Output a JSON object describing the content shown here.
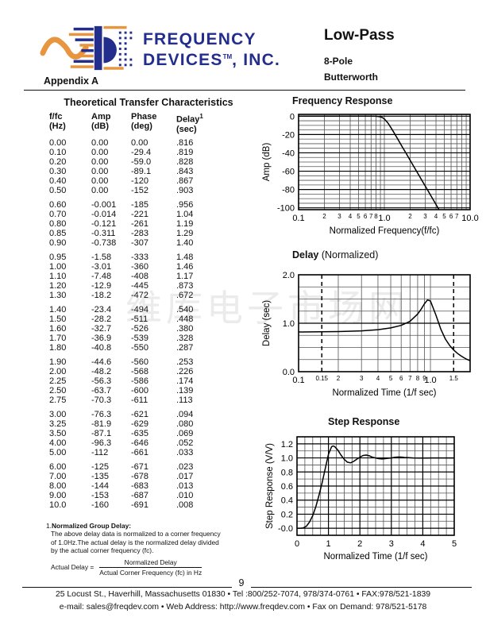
{
  "watermark": {
    "text": "维库电子市场网"
  },
  "header": {
    "brand_line1": "FREQUENCY",
    "brand_line2a": "DEVICES",
    "brand_tm": "TM",
    "brand_line2b": ", INC.",
    "brand_color": "#232e8c",
    "logo_orange": "#e8953f",
    "title": "Low-Pass",
    "subtitle1": "8-Pole",
    "subtitle2": "Butterworth",
    "appendix": "Appendix A"
  },
  "table": {
    "heading": "Theoretical Transfer Characteristics",
    "columns": [
      {
        "l1": "f/fc",
        "l2": "(Hz)"
      },
      {
        "l1": "Amp",
        "l2": "(dB)"
      },
      {
        "l1": "Phase",
        "l2": "(deg)"
      },
      {
        "l1": "Delay",
        "sup": "1",
        "l2": "(sec)"
      }
    ],
    "groups": [
      [
        [
          "0.00",
          "0.00",
          "0.00",
          ".816"
        ],
        [
          "0.10",
          "0.00",
          "-29.4",
          ".819"
        ],
        [
          "0.20",
          "0.00",
          "-59.0",
          ".828"
        ],
        [
          "0.30",
          "0.00",
          "-89.1",
          ".843"
        ],
        [
          "0.40",
          "0.00",
          "-120",
          ".867"
        ],
        [
          "0.50",
          "0.00",
          "-152",
          ".903"
        ]
      ],
      [
        [
          "0.60",
          "-0.001",
          "-185",
          ".956"
        ],
        [
          "0.70",
          "-0.014",
          "-221",
          "1.04"
        ],
        [
          "0.80",
          "-0.121",
          "-261",
          "1.19"
        ],
        [
          "0.85",
          "-0.311",
          "-283",
          "1.29"
        ],
        [
          "0.90",
          "-0.738",
          "-307",
          "1.40"
        ]
      ],
      [
        [
          "0.95",
          "-1.58",
          "-333",
          "1.48"
        ],
        [
          "1.00",
          "-3.01",
          "-360",
          "1.46"
        ],
        [
          "1.10",
          "-7.48",
          "-408",
          "1.17"
        ],
        [
          "1.20",
          "-12.9",
          "-445",
          ".873"
        ],
        [
          "1.30",
          "-18.2",
          "-472",
          ".672"
        ]
      ],
      [
        [
          "1.40",
          "-23.4",
          "-494",
          ".540"
        ],
        [
          "1.50",
          "-28.2",
          "-511",
          ".448"
        ],
        [
          "1.60",
          "-32.7",
          "-526",
          ".380"
        ],
        [
          "1.70",
          "-36.9",
          "-539",
          ".328"
        ],
        [
          "1.80",
          "-40.8",
          "-550",
          ".287"
        ]
      ],
      [
        [
          "1.90",
          "-44.6",
          "-560",
          ".253"
        ],
        [
          "2.00",
          "-48.2",
          "-568",
          ".226"
        ],
        [
          "2.25",
          "-56.3",
          "-586",
          ".174"
        ],
        [
          "2.50",
          "-63.7",
          "-600",
          ".139"
        ],
        [
          "2.75",
          "-70.3",
          "-611",
          ".113"
        ]
      ],
      [
        [
          "3.00",
          "-76.3",
          "-621",
          ".094"
        ],
        [
          "3.25",
          "-81.9",
          "-629",
          ".080"
        ],
        [
          "3.50",
          "-87.1",
          "-635",
          ".069"
        ],
        [
          "4.00",
          "-96.3",
          "-646",
          ".052"
        ],
        [
          "5.00",
          "-112",
          "-661",
          ".033"
        ]
      ],
      [
        [
          "6.00",
          "-125",
          "-671",
          ".023"
        ],
        [
          "7.00",
          "-135",
          "-678",
          ".017"
        ],
        [
          "8.00",
          "-144",
          "-683",
          ".013"
        ],
        [
          "9.00",
          "-153",
          "-687",
          ".010"
        ],
        [
          "10.0",
          "-160",
          "-691",
          ".008"
        ]
      ]
    ]
  },
  "footnote": {
    "num": "1.",
    "title": "Normalized Group Delay:",
    "lines": [
      "The above delay data is normalized to a corner frequency",
      "of 1.0Hz.The actual delay is the normalized delay divided",
      "by the actual corner frequency (fc)."
    ],
    "formula_lhs": "Actual Delay  =",
    "formula_num": "Normalized Delay",
    "formula_den": "Actual Corner Frequency (fc) in Hz"
  },
  "footer": {
    "page_number": "9",
    "line1": "25 Locust St., Haverhill, Massachusetts 01830 • Tel :800/252-7074, 978/374-0761 • FAX:978/521-1839",
    "line2": "e-mail: sales@freqdev.com • Web Address: http://www.freqdev.com • Fax on Demand: 978/521-5178"
  },
  "chart_data": [
    {
      "id": "freq",
      "type": "line",
      "title": "Frequency Response",
      "xlabel": "Normalized Frequency(f/fc)",
      "ylabel": "Amp (dB)",
      "xscale": "log",
      "xmin": 0.1,
      "xmax": 10,
      "ymin": -102,
      "ymax": 2,
      "grid": "on",
      "x_grid_minor": [
        0.2,
        0.3,
        0.4,
        0.5,
        0.6,
        0.7,
        0.8,
        0.9,
        1.0,
        2,
        3,
        4,
        5,
        6,
        7,
        8,
        9
      ],
      "x_grid_major": [],
      "x_grid_dashed": [],
      "y_grid_minor": [
        -5,
        -10,
        -15,
        -25,
        -30,
        -35,
        -45,
        -50,
        -55,
        -65,
        -70,
        -75,
        -85,
        -90,
        -95
      ],
      "y_grid_major": [
        0,
        -20,
        -40,
        -60,
        -80,
        -100
      ],
      "x_ticks": [
        {
          "v": 0.1,
          "t": "0.1",
          "big": true
        },
        {
          "v": 0.2,
          "t": "2"
        },
        {
          "v": 0.3,
          "t": "3"
        },
        {
          "v": 0.4,
          "t": "4"
        },
        {
          "v": 0.5,
          "t": "5"
        },
        {
          "v": 0.6,
          "t": "6"
        },
        {
          "v": 0.7,
          "t": "7"
        },
        {
          "v": 0.8,
          "t": "8"
        },
        {
          "v": 1,
          "t": "1.0",
          "big": true
        },
        {
          "v": 2,
          "t": "2"
        },
        {
          "v": 3,
          "t": "3"
        },
        {
          "v": 4,
          "t": "4"
        },
        {
          "v": 5,
          "t": "5"
        },
        {
          "v": 6,
          "t": "6"
        },
        {
          "v": 7,
          "t": "7"
        },
        {
          "v": 10,
          "t": "10.0",
          "big": true
        }
      ],
      "y_ticks": [
        {
          "v": 0,
          "t": "0"
        },
        {
          "v": -20,
          "t": "-20"
        },
        {
          "v": -40,
          "t": "-40"
        },
        {
          "v": -60,
          "t": "-60"
        },
        {
          "v": -80,
          "t": "-80"
        },
        {
          "v": -100,
          "t": "-100"
        }
      ],
      "series": [
        [
          0.1,
          0
        ],
        [
          0.2,
          0
        ],
        [
          0.3,
          0
        ],
        [
          0.4,
          0
        ],
        [
          0.5,
          0
        ],
        [
          0.6,
          -0.001
        ],
        [
          0.7,
          -0.014
        ],
        [
          0.8,
          -0.121
        ],
        [
          0.85,
          -0.311
        ],
        [
          0.9,
          -0.738
        ],
        [
          0.95,
          -1.58
        ],
        [
          1.0,
          -3.01
        ],
        [
          1.1,
          -7.48
        ],
        [
          1.2,
          -12.9
        ],
        [
          1.3,
          -18.2
        ],
        [
          1.4,
          -23.4
        ],
        [
          1.5,
          -28.2
        ],
        [
          1.6,
          -32.7
        ],
        [
          1.7,
          -36.9
        ],
        [
          1.8,
          -40.8
        ],
        [
          1.9,
          -44.6
        ],
        [
          2.0,
          -48.2
        ],
        [
          2.25,
          -56.3
        ],
        [
          2.5,
          -63.7
        ],
        [
          2.75,
          -70.3
        ],
        [
          3.0,
          -76.3
        ],
        [
          3.25,
          -81.9
        ],
        [
          3.5,
          -87.1
        ],
        [
          4.0,
          -96.3
        ],
        [
          5.0,
          -112
        ]
      ]
    },
    {
      "id": "delay",
      "type": "line",
      "title_bold": "Delay",
      "title_rest": "(Normalized)",
      "xlabel": "Normalized Time (1/f sec)",
      "ylabel": "Delay (sec)",
      "xscale": "log",
      "xmin": 0.1,
      "xmax": 2,
      "ymin": 0,
      "ymax": 2,
      "grid": "on",
      "x_grid_minor": [
        0.2,
        0.3,
        0.4,
        0.5,
        0.6,
        0.7,
        0.8,
        0.9,
        1.0
      ],
      "x_grid_major": [],
      "x_grid_dashed": [
        0.15,
        1.5
      ],
      "y_grid_minor": [
        0.25,
        0.5,
        0.75,
        1.25,
        1.5,
        1.75
      ],
      "y_grid_major": [
        1.0
      ],
      "x_ticks": [
        {
          "v": 0.1,
          "t": "0.1",
          "big": true
        },
        {
          "v": 0.15,
          "t": "0.15"
        },
        {
          "v": 0.2,
          "t": "2"
        },
        {
          "v": 0.3,
          "t": "3"
        },
        {
          "v": 0.4,
          "t": "4"
        },
        {
          "v": 0.5,
          "t": "5"
        },
        {
          "v": 0.6,
          "t": "6"
        },
        {
          "v": 0.7,
          "t": "7"
        },
        {
          "v": 0.8,
          "t": "8"
        },
        {
          "v": 0.9,
          "t": "9"
        },
        {
          "v": 1.0,
          "t": "1.0",
          "big": true
        },
        {
          "v": 1.5,
          "t": "1.5"
        }
      ],
      "y_ticks": [
        {
          "v": 2,
          "t": "2.0"
        },
        {
          "v": 1,
          "t": "1.0"
        },
        {
          "v": 0,
          "t": "0.0"
        }
      ],
      "series": [
        [
          0.1,
          0.819
        ],
        [
          0.2,
          0.828
        ],
        [
          0.3,
          0.843
        ],
        [
          0.4,
          0.867
        ],
        [
          0.5,
          0.903
        ],
        [
          0.6,
          0.956
        ],
        [
          0.7,
          1.04
        ],
        [
          0.8,
          1.19
        ],
        [
          0.85,
          1.29
        ],
        [
          0.9,
          1.4
        ],
        [
          0.95,
          1.48
        ],
        [
          1.0,
          1.46
        ],
        [
          1.1,
          1.17
        ],
        [
          1.2,
          0.873
        ],
        [
          1.3,
          0.672
        ],
        [
          1.4,
          0.54
        ],
        [
          1.5,
          0.448
        ],
        [
          1.6,
          0.38
        ],
        [
          1.7,
          0.328
        ],
        [
          1.8,
          0.287
        ],
        [
          1.9,
          0.253
        ],
        [
          2.0,
          0.226
        ]
      ]
    },
    {
      "id": "step",
      "type": "line",
      "title": "Step Response",
      "xlabel": "Normalized Time (1/f sec)",
      "ylabel": "Step Response (V/V)",
      "xscale": "linear",
      "xmin": 0,
      "xmax": 5,
      "ymin": -0.1,
      "ymax": 1.3,
      "grid": "on",
      "x_grid_minor": [
        0.25,
        0.5,
        0.75,
        1.25,
        1.5,
        1.75,
        2.25,
        2.5,
        2.75,
        3.25,
        3.5,
        3.75,
        4.25,
        4.5,
        4.75
      ],
      "x_grid_major": [
        1,
        2,
        3,
        4
      ],
      "x_grid_dashed": [],
      "y_grid_minor": [
        0.1,
        0.3,
        0.5,
        0.7,
        0.9,
        1.1
      ],
      "y_grid_major": [
        0,
        0.2,
        0.4,
        0.6,
        0.8,
        1.0,
        1.2
      ],
      "x_ticks": [
        {
          "v": 0,
          "t": "0",
          "big": true
        },
        {
          "v": 1,
          "t": "1",
          "big": true
        },
        {
          "v": 2,
          "t": "2",
          "big": true
        },
        {
          "v": 3,
          "t": "3",
          "big": true
        },
        {
          "v": 4,
          "t": "4",
          "big": true
        },
        {
          "v": 5,
          "t": "5",
          "big": true
        }
      ],
      "y_ticks": [
        {
          "v": 1.2,
          "t": "1.2"
        },
        {
          "v": 1.0,
          "t": "1.0"
        },
        {
          "v": 0.8,
          "t": "0.8"
        },
        {
          "v": 0.6,
          "t": "0.6"
        },
        {
          "v": 0.4,
          "t": "0.4"
        },
        {
          "v": 0.2,
          "t": "0.2"
        },
        {
          "v": 0,
          "t": "-0.0"
        }
      ],
      "series": [
        [
          0,
          0
        ],
        [
          0.1,
          0
        ],
        [
          0.2,
          0.005
        ],
        [
          0.3,
          0.03
        ],
        [
          0.4,
          0.09
        ],
        [
          0.5,
          0.18
        ],
        [
          0.6,
          0.31
        ],
        [
          0.7,
          0.47
        ],
        [
          0.8,
          0.65
        ],
        [
          0.9,
          0.85
        ],
        [
          1.0,
          1.05
        ],
        [
          1.1,
          1.16
        ],
        [
          1.15,
          1.17
        ],
        [
          1.2,
          1.16
        ],
        [
          1.3,
          1.11
        ],
        [
          1.4,
          1.04
        ],
        [
          1.5,
          0.98
        ],
        [
          1.6,
          0.94
        ],
        [
          1.7,
          0.93
        ],
        [
          1.8,
          0.95
        ],
        [
          1.9,
          0.98
        ],
        [
          2.0,
          1.01
        ],
        [
          2.1,
          1.035
        ],
        [
          2.2,
          1.04
        ],
        [
          2.3,
          1.03
        ],
        [
          2.4,
          1.01
        ],
        [
          2.5,
          1.0
        ],
        [
          2.6,
          0.99
        ],
        [
          2.7,
          0.985
        ],
        [
          2.8,
          0.99
        ],
        [
          2.9,
          0.995
        ],
        [
          3.0,
          1.0
        ],
        [
          3.1,
          1.008
        ],
        [
          3.2,
          1.012
        ],
        [
          3.3,
          1.012
        ],
        [
          3.4,
          1.008
        ],
        [
          3.5,
          1.005
        ],
        [
          3.7,
          1.0
        ],
        [
          3.9,
          0.998
        ],
        [
          4.1,
          0.999
        ],
        [
          4.3,
          1.0
        ],
        [
          4.6,
          1.0
        ],
        [
          5.0,
          1.0
        ]
      ]
    }
  ]
}
